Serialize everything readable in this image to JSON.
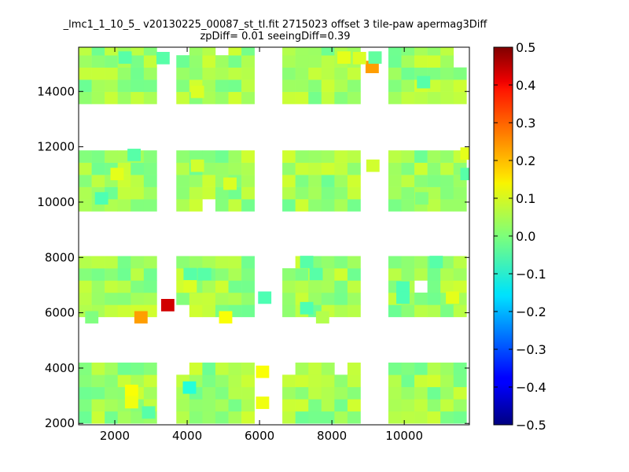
{
  "chart_data": {
    "type": "heatmap",
    "title": "_lmc1_1_10_5_ v20130225_00087_st_tl.fit 2715023 offset 3 tile-paw apermag3Diff",
    "subtitle": "zpDiff= 0.01 seeingDiff=0.39",
    "xlim": [
      1000,
      11800
    ],
    "ylim": [
      1950,
      15600
    ],
    "x_ticks": [
      2000,
      4000,
      6000,
      8000,
      10000
    ],
    "y_ticks": [
      2000,
      4000,
      6000,
      8000,
      10000,
      12000,
      14000
    ],
    "x_tick_labels": [
      "2000",
      "4000",
      "6000",
      "8000",
      "10000"
    ],
    "y_tick_labels": [
      "2000",
      "4000",
      "6000",
      "8000",
      "10000",
      "12000",
      "14000"
    ],
    "colorscale": "jet",
    "clim": [
      -0.5,
      0.5
    ],
    "colorbar_ticks": [
      0.5,
      0.4,
      0.3,
      0.2,
      0.1,
      0.0,
      -0.1,
      -0.2,
      -0.3,
      -0.4,
      -0.5
    ],
    "colorbar_tick_labels": [
      "0.5",
      "0.4",
      "0.3",
      "0.2",
      "0.1",
      "0.0",
      "−0.1",
      "−0.2",
      "−0.3",
      "−0.4",
      "−0.5"
    ],
    "cell_size": [
      360,
      440
    ],
    "column_blocks_x": [
      1000,
      3700,
      6630,
      9560
    ],
    "row_blocks_y": [
      2000,
      5850,
      9670,
      13550
    ],
    "block_cols": 6,
    "block_rows": 5,
    "default_value": 0.03,
    "missing_cells": [
      [
        3,
        1,
        5,
        4
      ],
      [
        3,
        1,
        2,
        2
      ],
      [
        2,
        1,
        4,
        0
      ],
      [
        2,
        1,
        5,
        0
      ],
      [
        1,
        1,
        0,
        0
      ],
      [
        2,
        0,
        4,
        0
      ],
      [
        2,
        0,
        4,
        4
      ],
      [
        2,
        0,
        5,
        0
      ],
      [
        3,
        0,
        5,
        4
      ],
      [
        1,
        0,
        4,
        0
      ],
      [
        2,
        3,
        5,
        4
      ],
      [
        1,
        3,
        4,
        0
      ],
      [
        1,
        3,
        4,
        3
      ],
      [
        3,
        3,
        4,
        5
      ],
      [
        3,
        3,
        3,
        5
      ],
      [
        1,
        2,
        0,
        2
      ]
    ],
    "cells": [
      {
        "x": 1180,
        "y": 5620,
        "v": 0.0
      },
      {
        "x": 2540,
        "y": 5620,
        "v": 0.22
      },
      {
        "x": 3280,
        "y": 6060,
        "v": 0.42
      },
      {
        "x": 4880,
        "y": 5620,
        "v": 0.12
      },
      {
        "x": 7560,
        "y": 5620,
        "v": 0.05
      },
      {
        "x": 8930,
        "y": 14670,
        "v": 0.22
      },
      {
        "x": 3150,
        "y": 14990,
        "v": -0.04
      },
      {
        "x": 8150,
        "y": 15010,
        "v": 0.1
      },
      {
        "x": 8580,
        "y": 14990,
        "v": 0.09
      },
      {
        "x": 9010,
        "y": 15010,
        "v": -0.03
      },
      {
        "x": 2100,
        "y": 15010,
        "v": -0.04
      },
      {
        "x": 10350,
        "y": 14120,
        "v": -0.04
      },
      {
        "x": 4100,
        "y": 13770,
        "v": 0.09
      },
      {
        "x": 2280,
        "y": 2960,
        "v": 0.12
      },
      {
        "x": 2280,
        "y": 2550,
        "v": 0.11
      },
      {
        "x": 3880,
        "y": 3080,
        "v": -0.09
      },
      {
        "x": 5900,
        "y": 3650,
        "v": 0.12
      },
      {
        "x": 5900,
        "y": 2530,
        "v": 0.11
      },
      {
        "x": 2750,
        "y": 2180,
        "v": -0.04
      },
      {
        "x": 2350,
        "y": 11490,
        "v": -0.04
      },
      {
        "x": 1450,
        "y": 9920,
        "v": -0.05
      },
      {
        "x": 1880,
        "y": 10800,
        "v": 0.1
      },
      {
        "x": 4100,
        "y": 11100,
        "v": 0.08
      },
      {
        "x": 5000,
        "y": 10450,
        "v": 0.09
      },
      {
        "x": 8950,
        "y": 11100,
        "v": 0.08
      },
      {
        "x": 11550,
        "y": 11540,
        "v": 0.1
      },
      {
        "x": 11550,
        "y": 10800,
        "v": -0.04
      },
      {
        "x": 10300,
        "y": 9920,
        "v": 0.0
      },
      {
        "x": 3900,
        "y": 7180,
        "v": -0.04
      },
      {
        "x": 4300,
        "y": 7180,
        "v": -0.04
      },
      {
        "x": 3900,
        "y": 6740,
        "v": 0.09
      },
      {
        "x": 5960,
        "y": 6330,
        "v": -0.05
      },
      {
        "x": 7120,
        "y": 7620,
        "v": -0.04
      },
      {
        "x": 7380,
        "y": 7180,
        "v": -0.04
      },
      {
        "x": 7120,
        "y": 5950,
        "v": -0.05
      },
      {
        "x": 9780,
        "y": 6700,
        "v": -0.05
      },
      {
        "x": 9780,
        "y": 6330,
        "v": -0.05
      },
      {
        "x": 11150,
        "y": 6330,
        "v": 0.1
      },
      {
        "x": 10700,
        "y": 7620,
        "v": -0.04
      }
    ]
  }
}
